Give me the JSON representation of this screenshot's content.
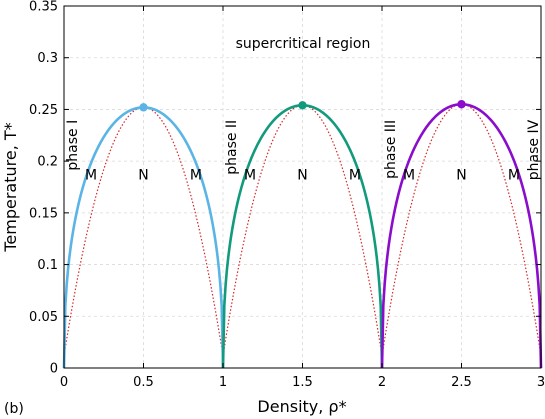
{
  "panel_label": "(b)",
  "chart_data": {
    "type": "line",
    "xlabel": "Density, ρ*",
    "ylabel": "Temperature, T*",
    "xlim": [
      0,
      3
    ],
    "ylim": [
      0,
      0.35
    ],
    "xticks": [
      0,
      0.5,
      1,
      1.5,
      2,
      2.5,
      3
    ],
    "xtick_labels": [
      "0",
      "0.5",
      "1",
      "1.5",
      "2",
      "2.5",
      "3"
    ],
    "yticks": [
      0,
      0.05,
      0.1,
      0.15,
      0.2,
      0.25,
      0.3,
      0.35
    ],
    "ytick_labels": [
      "0",
      "0.05",
      "0.1",
      "0.15",
      "0.2",
      "0.25",
      "0.3",
      "0.35"
    ],
    "grid": true,
    "region_label": "supercritical region",
    "domes": [
      {
        "x_min": 0,
        "x_max": 1,
        "critical_point": [
          0.5,
          0.252
        ],
        "color": "#5ab4e5",
        "phase_label": "phase I",
        "left_label": "M",
        "center_label": "N",
        "right_label": "M"
      },
      {
        "x_min": 1,
        "x_max": 2,
        "critical_point": [
          1.5,
          0.254
        ],
        "color": "#129a7c",
        "phase_label": "phase II",
        "left_label": "M",
        "center_label": "N",
        "right_label": "M"
      },
      {
        "x_min": 2,
        "x_max": 3,
        "critical_point": [
          2.5,
          0.255
        ],
        "color": "#8a0ccc",
        "phase_label": "phase III",
        "left_label": "M",
        "center_label": "N",
        "right_label": "M"
      }
    ],
    "extra_phase_label": "phase IV",
    "spinodal": {
      "color": "#d62728",
      "style": "dotted",
      "base_T": 0.012
    },
    "binodal_base_T": 0.0
  }
}
